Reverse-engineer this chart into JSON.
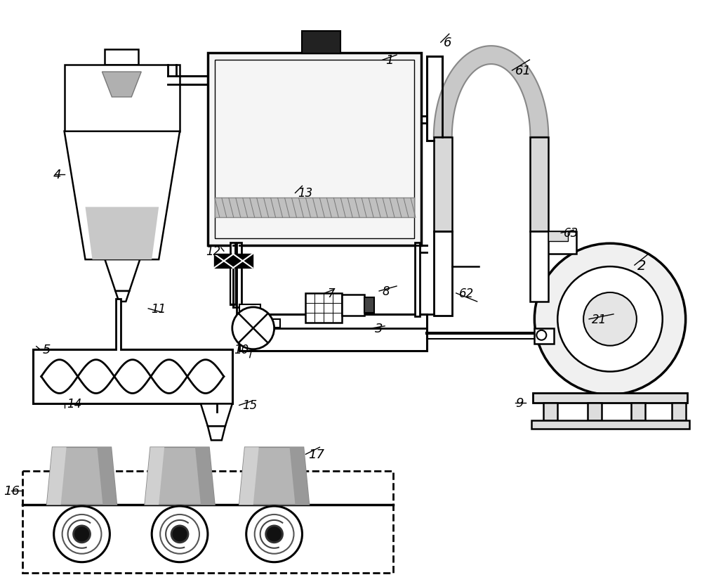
{
  "bg": "#ffffff",
  "lc": "#000000",
  "figsize": [
    10.0,
    8.29
  ],
  "dpi": 100
}
